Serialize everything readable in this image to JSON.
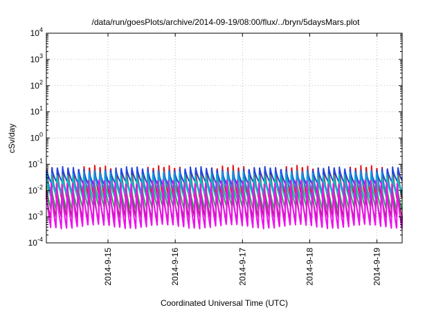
{
  "chart_data": {
    "type": "line",
    "title": "/data/run/goesPlots/archive/2014-09-19/08:00/flux/../bryn/5daysMars.plot",
    "xlabel": "Coordinated Universal Time (UTC)",
    "ylabel": "cSv/day",
    "y_scale": "log",
    "ylim_exponents": [
      -4,
      4
    ],
    "y_ticks": [
      {
        "base": "10",
        "exp": "-4"
      },
      {
        "base": "10",
        "exp": "-3"
      },
      {
        "base": "10",
        "exp": "-2"
      },
      {
        "base": "10",
        "exp": "-1"
      },
      {
        "base": "10",
        "exp": "0"
      },
      {
        "base": "10",
        "exp": "1"
      },
      {
        "base": "10",
        "exp": "2"
      },
      {
        "base": "10",
        "exp": "3"
      },
      {
        "base": "10",
        "exp": "4"
      }
    ],
    "xlim": [
      "2014-09-14T02:00",
      "2014-09-19T09:00"
    ],
    "x_ticks": [
      "2014-9-15",
      "2014-9-16",
      "2014-9-17",
      "2014-9-18",
      "2014-9-19"
    ],
    "grid": true,
    "cycle_period_hours": 1.9,
    "series": [
      {
        "color": "#dd1111",
        "peak_log": -1.05,
        "trough_log": -2.35
      },
      {
        "color": "#2244dd",
        "peak_log": -1.15,
        "trough_log": -1.75
      },
      {
        "color": "#1199dd",
        "peak_log": -1.3,
        "trough_log": -2.05
      },
      {
        "color": "#11bbbb",
        "peak_log": -1.45,
        "trough_log": -2.3
      },
      {
        "color": "#22aa55",
        "peak_log": -1.7,
        "trough_log": -2.7
      },
      {
        "color": "#aa2277",
        "peak_log": -1.9,
        "trough_log": -3.1
      },
      {
        "color": "#ee11ee",
        "peak_log": -1.55,
        "trough_log": -3.4
      }
    ]
  }
}
